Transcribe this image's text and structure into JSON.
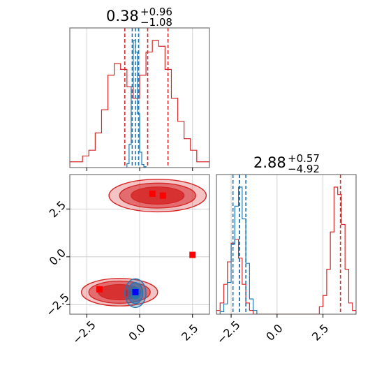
{
  "colors": {
    "red": "#d62728",
    "blue": "#1f77b4",
    "marker_red": "#ff0000",
    "marker_blue": "#0000ff",
    "grid": "#c8c8c8",
    "frame": "#555555"
  },
  "titles": {
    "param1": {
      "median": "0.38",
      "plus": "+0.96",
      "minus": "−1.08"
    },
    "param2": {
      "median": "2.88",
      "plus": "+0.57",
      "minus": "−4.92"
    }
  },
  "chart_data": [
    {
      "type": "histogram",
      "panel": "marginal-param-1",
      "xlim": [
        -3.3,
        3.3
      ],
      "grid": true,
      "series": [
        {
          "color": "red",
          "bin_edges": [
            -3.3,
            -3.0,
            -2.7,
            -2.4,
            -2.1,
            -1.8,
            -1.5,
            -1.2,
            -0.9,
            -0.6,
            -0.3,
            0.0,
            0.3,
            0.6,
            0.9,
            1.2,
            1.5,
            1.8,
            2.1,
            2.4,
            2.7,
            3.0,
            3.3
          ],
          "counts": [
            1,
            1,
            2,
            3,
            6,
            10,
            16,
            18,
            17,
            14,
            12,
            16,
            20,
            22,
            21,
            17,
            12,
            8,
            5,
            3,
            1,
            1
          ],
          "quantile_lines": [
            -0.7,
            0.38,
            1.34
          ]
        },
        {
          "color": "blue",
          "bin_edges": [
            -0.6,
            -0.5,
            -0.4,
            -0.3,
            -0.2,
            -0.1,
            0.0,
            0.1,
            0.2,
            0.3
          ],
          "counts": [
            5,
            30,
            105,
            165,
            150,
            70,
            20,
            4,
            1
          ],
          "quantile_lines": [
            -0.35,
            -0.2,
            -0.05
          ]
        }
      ]
    },
    {
      "type": "histogram",
      "panel": "marginal-param-2",
      "xlim": [
        -3.3,
        4.3
      ],
      "xticks": [
        -2.5,
        0.0,
        2.5
      ],
      "xtick_labels": [
        "−2.5",
        "0.0",
        "2.5"
      ],
      "grid": true,
      "series": [
        {
          "color": "red",
          "bin_edges": [
            -3.3,
            -3.1,
            -2.9,
            -2.7,
            -2.5,
            -2.3,
            -2.1,
            -1.9,
            -1.7,
            -1.5,
            -1.3,
            -1.1,
            2.3,
            2.5,
            2.7,
            2.9,
            3.1,
            3.3,
            3.5,
            3.7,
            3.9,
            4.1,
            4.3
          ],
          "counts": [
            1,
            3,
            8,
            14,
            19,
            20,
            15,
            8,
            3,
            1,
            0,
            0,
            2,
            5,
            12,
            22,
            34,
            32,
            24,
            12,
            3,
            1
          ],
          "quantile_lines": [
            -2.04,
            3.45
          ]
        },
        {
          "color": "blue",
          "bin_edges": [
            -3.1,
            -2.9,
            -2.7,
            -2.5,
            -2.3,
            -2.1,
            -1.9,
            -1.7,
            -1.5,
            -1.3,
            -1.1
          ],
          "counts": [
            2,
            8,
            25,
            55,
            85,
            100,
            75,
            40,
            12,
            3
          ],
          "quantile_lines": [
            -2.4,
            -2.05,
            -1.7
          ]
        }
      ]
    },
    {
      "type": "contour",
      "panel": "joint-param-1-param-2",
      "xlim": [
        -3.3,
        3.3
      ],
      "ylim": [
        -3.0,
        4.3
      ],
      "xticks": [
        -2.5,
        0.0,
        2.5
      ],
      "xtick_labels": [
        "−2.5",
        "0.0",
        "2.5"
      ],
      "yticks": [
        -2.5,
        0.0,
        2.5
      ],
      "ytick_labels": [
        "−2.5",
        "0.0",
        "2.5"
      ],
      "grid": true,
      "series": [
        {
          "color": "red",
          "clusters": [
            {
              "cx": 0.85,
              "cy": 3.2,
              "rx": [
                2.3,
                1.8,
                1.25
              ],
              "ry": [
                0.85,
                0.65,
                0.45
              ]
            },
            {
              "cx": -0.95,
              "cy": -1.85,
              "rx": [
                1.8,
                1.45,
                1.0
              ],
              "ry": [
                0.72,
                0.58,
                0.4
              ]
            }
          ],
          "markers": [
            [
              0.6,
              3.3
            ],
            [
              1.1,
              3.2
            ],
            [
              2.5,
              0.1
            ],
            [
              -1.9,
              -1.7
            ],
            [
              -0.5,
              -1.9
            ]
          ]
        },
        {
          "color": "blue",
          "clusters": [
            {
              "cx": -0.2,
              "cy": -1.9,
              "rx": [
                0.5,
                0.35,
                0.2
              ],
              "ry": [
                0.75,
                0.55,
                0.3
              ]
            }
          ],
          "markers": [
            [
              -0.2,
              -1.85
            ]
          ]
        }
      ]
    }
  ]
}
